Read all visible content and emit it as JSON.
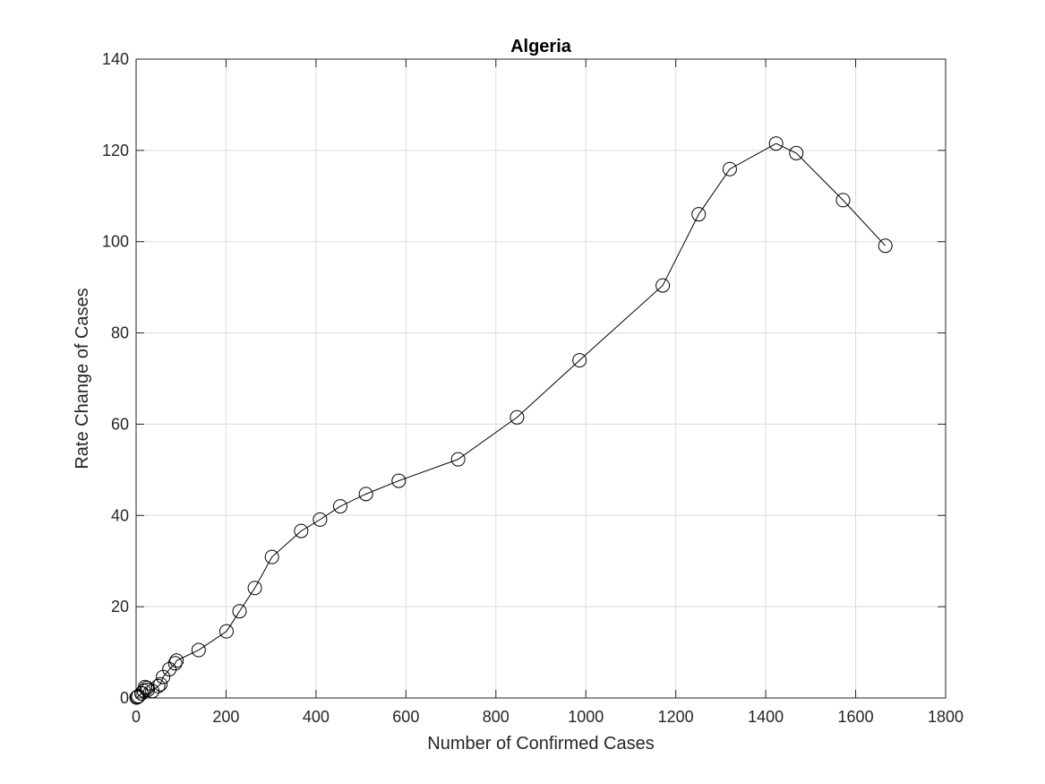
{
  "chart_data": {
    "type": "line",
    "title": "Algeria",
    "xlabel": "Number of Confirmed Cases",
    "ylabel": "Rate Change of Cases",
    "xlim": [
      0,
      1800
    ],
    "ylim": [
      0,
      140
    ],
    "xticks": [
      0,
      200,
      400,
      600,
      800,
      1000,
      1200,
      1400,
      1600,
      1800
    ],
    "yticks": [
      0,
      20,
      40,
      60,
      80,
      100,
      120,
      140
    ],
    "grid": true,
    "marker": "circle-open",
    "colors": {
      "line": "#000000",
      "grid": "#dcdcdc",
      "axis": "#262626"
    },
    "series": [
      {
        "x": [
          1,
          3,
          5,
          12,
          17,
          20,
          24,
          26,
          36,
          49,
          54,
          60,
          74,
          87,
          90,
          139,
          201,
          230,
          264,
          302,
          367,
          409,
          454,
          511,
          584,
          716,
          847,
          986,
          1171,
          1251,
          1320,
          1423,
          1468,
          1572,
          1666
        ],
        "y": [
          0.1,
          0.2,
          0.4,
          1.0,
          1.6,
          2.4,
          2.2,
          1.8,
          1.5,
          2.6,
          3.0,
          4.6,
          6.3,
          7.6,
          8.2,
          10.5,
          14.6,
          19.0,
          24.1,
          30.9,
          36.6,
          39.1,
          42.0,
          44.7,
          47.6,
          52.3,
          61.5,
          74.0,
          90.4,
          106.0,
          115.9,
          121.5,
          119.4,
          109.1,
          99.1
        ]
      }
    ]
  }
}
